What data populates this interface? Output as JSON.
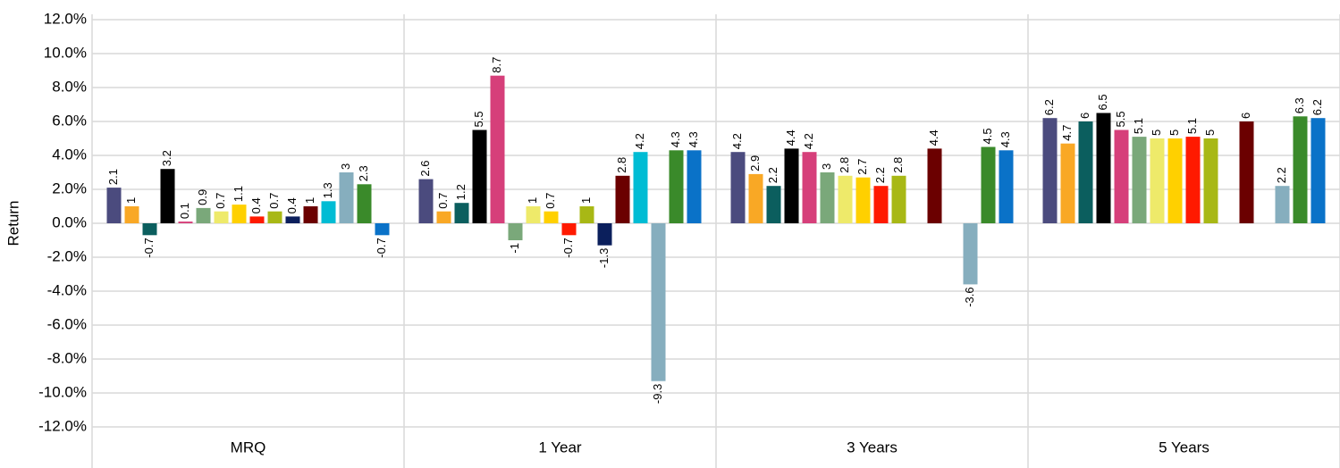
{
  "chart_data": {
    "type": "bar",
    "y_label": "Return",
    "categories": [
      "MRQ",
      "1 Year",
      "3 Years",
      "5 Years"
    ],
    "series": [
      {
        "color": "#4b4b7e",
        "values": [
          2.1,
          2.6,
          4.2,
          6.2
        ]
      },
      {
        "color": "#f9a825",
        "values": [
          1.0,
          0.7,
          2.9,
          4.7
        ]
      },
      {
        "color": "#0b5e5e",
        "values": [
          -0.7,
          1.2,
          2.2,
          6.0
        ]
      },
      {
        "color": "#000000",
        "values": [
          3.2,
          5.5,
          4.4,
          6.5
        ]
      },
      {
        "color": "#d63f7a",
        "values": [
          0.1,
          8.7,
          4.2,
          5.5
        ]
      },
      {
        "color": "#7aa87a",
        "values": [
          0.9,
          -1.0,
          3.0,
          5.1
        ]
      },
      {
        "color": "#eeea6a",
        "values": [
          0.7,
          1.0,
          2.8,
          5.0
        ]
      },
      {
        "color": "#ffd000",
        "values": [
          1.1,
          0.7,
          2.7,
          5.0
        ]
      },
      {
        "color": "#ff1a00",
        "values": [
          0.4,
          -0.7,
          2.2,
          5.1
        ]
      },
      {
        "color": "#a8b815",
        "values": [
          0.7,
          1.0,
          2.8,
          5.0
        ]
      },
      {
        "color": "#0b1f5c",
        "values": [
          0.4,
          -1.3,
          null,
          null
        ]
      },
      {
        "color": "#6b0000",
        "values": [
          1.0,
          2.8,
          4.4,
          6.0
        ]
      },
      {
        "color": "#00bcd4",
        "values": [
          1.3,
          4.2,
          null,
          null
        ]
      },
      {
        "color": "#86aebe",
        "values": [
          3.0,
          -9.3,
          -3.6,
          2.2
        ]
      },
      {
        "color": "#3a8a2a",
        "values": [
          2.3,
          4.3,
          4.5,
          6.3
        ]
      },
      {
        "color": "#0a72c8",
        "values": [
          -0.7,
          4.3,
          4.3,
          6.2
        ]
      }
    ],
    "ylim": [
      -12,
      12
    ],
    "yticks": [
      {
        "value": -12,
        "label": "-12.0%"
      },
      {
        "value": -10,
        "label": "-10.0%"
      },
      {
        "value": -8,
        "label": "-8.0%"
      },
      {
        "value": -6,
        "label": "-6.0%"
      },
      {
        "value": -4,
        "label": "-4.0%"
      },
      {
        "value": -2,
        "label": "-2.0%"
      },
      {
        "value": 0,
        "label": "0.0%"
      },
      {
        "value": 2,
        "label": "2.0%"
      },
      {
        "value": 4,
        "label": "4.0%"
      },
      {
        "value": 6,
        "label": "6.0%"
      },
      {
        "value": 8,
        "label": "8.0%"
      },
      {
        "value": 10,
        "label": "10.0%"
      },
      {
        "value": 12,
        "label": "12.0%"
      }
    ],
    "grid": true
  }
}
